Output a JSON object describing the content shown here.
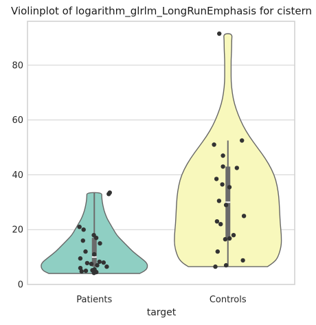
{
  "chart_data": {
    "type": "violin",
    "title": "Violinplot of logarithm_glrlm_LongRunEmphasis for cistern",
    "xlabel": "target",
    "ylabel": "",
    "ylim": [
      0,
      96
    ],
    "yticks": [
      0,
      20,
      40,
      60,
      80
    ],
    "grid": "horizontal",
    "categories": [
      "Patients",
      "Controls"
    ],
    "colors": [
      "#8fcfc3",
      "#f8f8bc"
    ],
    "series": [
      {
        "category": "Patients",
        "min": 4.0,
        "max": 33.5,
        "q1": 6.5,
        "median": 10.0,
        "q3": 17.0,
        "whisker_low": 4.0,
        "whisker_high": 33.5,
        "density": [
          [
            4.0,
            0.85
          ],
          [
            5.0,
            0.96
          ],
          [
            6.5,
            1.0
          ],
          [
            8.0,
            0.98
          ],
          [
            10.0,
            0.85
          ],
          [
            12.0,
            0.72
          ],
          [
            14.0,
            0.62
          ],
          [
            16.0,
            0.52
          ],
          [
            18.0,
            0.42
          ],
          [
            20.0,
            0.36
          ],
          [
            22.0,
            0.3
          ],
          [
            24.0,
            0.24
          ],
          [
            26.0,
            0.2
          ],
          [
            28.0,
            0.17
          ],
          [
            30.0,
            0.15
          ],
          [
            32.0,
            0.14
          ],
          [
            33.5,
            0.14
          ]
        ],
        "points": [
          4.2,
          4.5,
          4.8,
          5.0,
          5.2,
          5.5,
          6.0,
          6.5,
          7.0,
          7.5,
          7.8,
          8.0,
          8.3,
          9.5,
          11.0,
          12.0,
          15.0,
          16.0,
          17.0,
          18.0,
          20.0,
          21.0,
          33.0,
          33.5
        ]
      },
      {
        "category": "Controls",
        "min": 6.5,
        "max": 91.5,
        "q1": 17.0,
        "median": 30.0,
        "q3": 43.0,
        "whisker_low": 6.5,
        "whisker_high": 52.5,
        "density": [
          [
            6.5,
            0.74
          ],
          [
            8.0,
            0.86
          ],
          [
            10.0,
            0.94
          ],
          [
            14.0,
            1.0
          ],
          [
            18.0,
            1.0
          ],
          [
            22.0,
            0.98
          ],
          [
            26.0,
            0.97
          ],
          [
            30.0,
            0.96
          ],
          [
            34.0,
            0.94
          ],
          [
            38.0,
            0.9
          ],
          [
            42.0,
            0.82
          ],
          [
            46.0,
            0.7
          ],
          [
            50.0,
            0.55
          ],
          [
            54.0,
            0.4
          ],
          [
            58.0,
            0.28
          ],
          [
            62.0,
            0.19
          ],
          [
            66.0,
            0.12
          ],
          [
            70.0,
            0.08
          ],
          [
            74.0,
            0.06
          ],
          [
            78.0,
            0.06
          ],
          [
            82.0,
            0.06
          ],
          [
            86.0,
            0.07
          ],
          [
            89.0,
            0.07
          ],
          [
            91.5,
            0.08
          ]
        ],
        "points": [
          6.5,
          7.0,
          8.8,
          12.0,
          16.5,
          16.8,
          18.0,
          22.0,
          23.0,
          25.0,
          29.0,
          30.5,
          35.5,
          36.5,
          38.5,
          42.5,
          43.0,
          47.0,
          51.0,
          52.5,
          91.5
        ]
      }
    ]
  }
}
